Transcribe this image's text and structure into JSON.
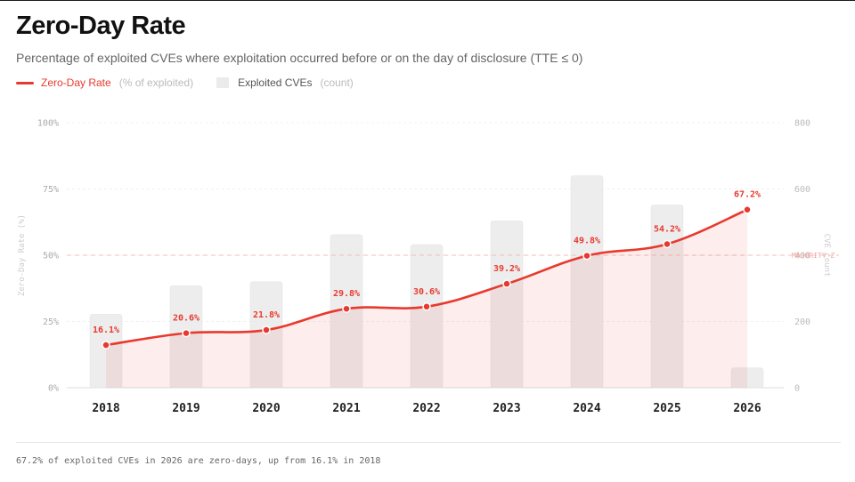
{
  "header": {
    "title": "Zero-Day Rate",
    "subtitle": "Percentage of exploited CVEs where exploitation occurred before or on the day of disclosure (TTE ≤ 0)"
  },
  "legend": {
    "line_name": "Zero-Day Rate",
    "line_unit": "(% of exploited)",
    "bar_name": "Exploited CVEs",
    "bar_unit": "(count)"
  },
  "footer": {
    "note": "67.2% of exploited CVEs in 2026 are zero-days, up from 16.1% in 2018"
  },
  "colors": {
    "accent": "#e8392e",
    "bar": "#ebebeb",
    "grid": "#f0f0f0"
  },
  "chart_data": {
    "type": "bar+line",
    "categories": [
      "2018",
      "2019",
      "2020",
      "2021",
      "2022",
      "2023",
      "2024",
      "2025",
      "2026"
    ],
    "series": [
      {
        "name": "Zero-Day Rate",
        "unit": "% of exploited",
        "axis": "left",
        "type": "line",
        "values": [
          16.1,
          20.6,
          21.8,
          29.8,
          30.6,
          39.2,
          49.8,
          54.2,
          67.2
        ],
        "labels": [
          "16.1%",
          "20.6%",
          "21.8%",
          "29.8%",
          "30.6%",
          "39.2%",
          "49.8%",
          "54.2%",
          "67.2%"
        ]
      },
      {
        "name": "Exploited CVEs",
        "unit": "count",
        "axis": "right",
        "type": "bar",
        "values": [
          222,
          308,
          320,
          462,
          432,
          504,
          640,
          552,
          60
        ]
      }
    ],
    "left_axis": {
      "label": "Zero-Day Rate (%)",
      "ticks": [
        "100%",
        "75%",
        "50%",
        "25%",
        "0%"
      ],
      "tick_values": [
        100,
        75,
        50,
        25,
        0
      ],
      "range": [
        0,
        100
      ]
    },
    "right_axis": {
      "label": "CVE count",
      "ticks": [
        "800",
        "600",
        "400",
        "200",
        "0"
      ],
      "tick_values": [
        800,
        600,
        400,
        200,
        0
      ],
      "range": [
        0,
        800
      ]
    },
    "reference_line": {
      "value": 50,
      "label": "MAJORITY Z"
    }
  }
}
